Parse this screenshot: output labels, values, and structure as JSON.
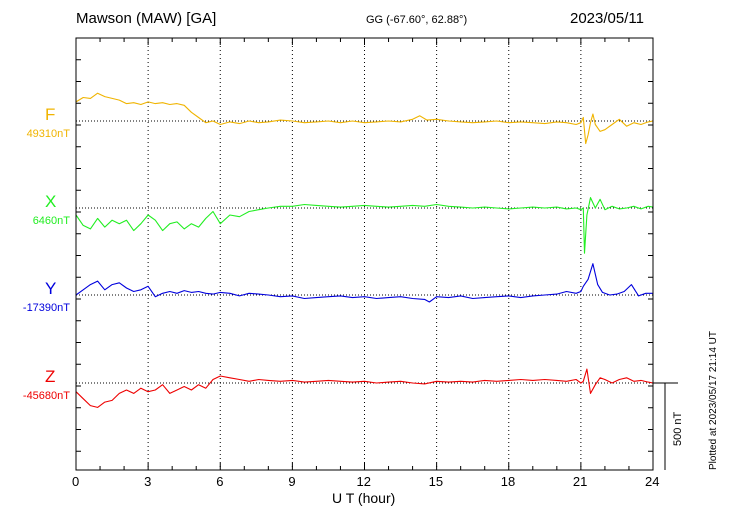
{
  "header": {
    "station": "Mawson (MAW)  [GA]",
    "coords": "GG (-67.60°,  62.88°)",
    "date": "2023/05/11"
  },
  "footer": {
    "plotted": "Plotted at 2023/05/17 21:14 UT"
  },
  "chart_data": {
    "type": "line",
    "xlabel": "U T (hour)",
    "xlim": [
      0,
      24
    ],
    "xticks": [
      "0",
      "3",
      "6",
      "9",
      "12",
      "15",
      "18",
      "21",
      "24"
    ],
    "scale_bar": {
      "value": 500,
      "label": "500 nT"
    },
    "series": [
      {
        "name": "F",
        "baseline_label": "49310nT",
        "baseline": 49310,
        "color": "#f0b400",
        "x": [
          0,
          0.3,
          0.6,
          0.9,
          1.2,
          1.5,
          1.8,
          2.1,
          2.4,
          2.7,
          3.0,
          3.3,
          3.6,
          3.9,
          4.2,
          4.5,
          4.8,
          5.1,
          5.4,
          5.7,
          6.0,
          6.4,
          6.8,
          7.2,
          7.6,
          8.0,
          8.5,
          9.0,
          9.5,
          10,
          10.5,
          11,
          11.5,
          12,
          12.5,
          13,
          13.5,
          14,
          14.3,
          14.6,
          15,
          15.5,
          16,
          16.5,
          17,
          17.5,
          18,
          18.5,
          19,
          19.5,
          20,
          20.4,
          20.8,
          21.0,
          21.1,
          21.2,
          21.3,
          21.4,
          21.5,
          21.6,
          21.8,
          22.0,
          22.3,
          22.6,
          22.9,
          23.2,
          23.5,
          23.8,
          24
        ],
        "values": [
          49420,
          49445,
          49440,
          49470,
          49450,
          49440,
          49430,
          49410,
          49415,
          49405,
          49420,
          49410,
          49415,
          49405,
          49410,
          49400,
          49360,
          49330,
          49300,
          49310,
          49290,
          49305,
          49295,
          49310,
          49300,
          49305,
          49315,
          49310,
          49300,
          49305,
          49310,
          49300,
          49310,
          49300,
          49305,
          49310,
          49305,
          49320,
          49340,
          49315,
          49320,
          49310,
          49305,
          49300,
          49305,
          49310,
          49300,
          49305,
          49300,
          49295,
          49305,
          49300,
          49290,
          49300,
          49330,
          49180,
          49230,
          49300,
          49350,
          49290,
          49250,
          49260,
          49290,
          49320,
          49280,
          49300,
          49290,
          49305,
          49310
        ]
      },
      {
        "name": "X",
        "baseline_label": "6460nT",
        "baseline": 6460,
        "color": "#22ee22",
        "x": [
          0,
          0.3,
          0.6,
          0.9,
          1.2,
          1.5,
          1.8,
          2.1,
          2.4,
          2.7,
          3.0,
          3.3,
          3.6,
          3.9,
          4.2,
          4.5,
          4.8,
          5.1,
          5.4,
          5.7,
          6.0,
          6.4,
          6.8,
          7.2,
          7.6,
          8.0,
          8.5,
          9.0,
          9.5,
          10,
          10.5,
          11,
          11.5,
          12,
          12.5,
          13,
          13.5,
          14,
          14.5,
          15,
          15.5,
          16,
          16.5,
          17,
          17.5,
          18,
          18.5,
          19,
          19.5,
          20,
          20.4,
          20.8,
          21.0,
          21.1,
          21.15,
          21.25,
          21.4,
          21.6,
          21.8,
          22.0,
          22.3,
          22.6,
          22.9,
          23.2,
          23.5,
          23.8,
          24
        ],
        "values": [
          6420,
          6360,
          6340,
          6400,
          6350,
          6390,
          6370,
          6390,
          6330,
          6370,
          6420,
          6390,
          6330,
          6370,
          6380,
          6340,
          6370,
          6350,
          6400,
          6440,
          6370,
          6420,
          6410,
          6440,
          6450,
          6460,
          6470,
          6470,
          6480,
          6475,
          6470,
          6465,
          6470,
          6475,
          6470,
          6465,
          6470,
          6475,
          6470,
          6480,
          6470,
          6465,
          6460,
          6465,
          6460,
          6455,
          6460,
          6465,
          6460,
          6465,
          6455,
          6460,
          6450,
          6460,
          6200,
          6420,
          6520,
          6460,
          6510,
          6450,
          6470,
          6455,
          6460,
          6470,
          6455,
          6470,
          6465
        ]
      },
      {
        "name": "Y",
        "baseline_label": "-17390nT",
        "baseline": -17390,
        "color": "#0000dd",
        "x": [
          0,
          0.3,
          0.6,
          0.9,
          1.2,
          1.5,
          1.8,
          2.1,
          2.4,
          2.7,
          3.0,
          3.3,
          3.6,
          3.9,
          4.2,
          4.5,
          4.8,
          5.1,
          5.4,
          5.7,
          6.0,
          6.4,
          6.8,
          7.2,
          7.6,
          8.0,
          8.5,
          9.0,
          9.5,
          10,
          10.5,
          11,
          11.5,
          12,
          12.5,
          13,
          13.5,
          14,
          14.5,
          14.7,
          15,
          15.5,
          16,
          16.5,
          17,
          17.5,
          18,
          18.5,
          19,
          19.5,
          20,
          20.4,
          20.8,
          21.0,
          21.1,
          21.3,
          21.5,
          21.7,
          21.9,
          22.2,
          22.5,
          22.8,
          23.1,
          23.4,
          23.7,
          24
        ],
        "values": [
          -17390,
          -17360,
          -17330,
          -17310,
          -17360,
          -17330,
          -17320,
          -17350,
          -17370,
          -17360,
          -17340,
          -17400,
          -17380,
          -17370,
          -17380,
          -17365,
          -17375,
          -17370,
          -17380,
          -17385,
          -17375,
          -17380,
          -17395,
          -17380,
          -17385,
          -17390,
          -17400,
          -17395,
          -17410,
          -17405,
          -17400,
          -17395,
          -17405,
          -17400,
          -17410,
          -17405,
          -17400,
          -17410,
          -17415,
          -17430,
          -17400,
          -17405,
          -17395,
          -17410,
          -17405,
          -17400,
          -17395,
          -17405,
          -17395,
          -17390,
          -17385,
          -17370,
          -17380,
          -17370,
          -17340,
          -17300,
          -17210,
          -17330,
          -17375,
          -17390,
          -17385,
          -17370,
          -17330,
          -17395,
          -17380,
          -17380
        ]
      },
      {
        "name": "Z",
        "baseline_label": "-45680nT",
        "baseline": -45680,
        "color": "#ee0000",
        "x": [
          0,
          0.3,
          0.6,
          0.9,
          1.2,
          1.5,
          1.8,
          2.1,
          2.4,
          2.7,
          3.0,
          3.3,
          3.6,
          3.9,
          4.2,
          4.5,
          4.8,
          5.1,
          5.4,
          5.7,
          6.0,
          6.4,
          6.8,
          7.2,
          7.6,
          8.0,
          8.5,
          9.0,
          9.5,
          10,
          10.5,
          11,
          11.5,
          12,
          12.5,
          13,
          13.5,
          14,
          14.5,
          15,
          15.5,
          16,
          16.5,
          17,
          17.5,
          18,
          18.5,
          19,
          19.5,
          20,
          20.4,
          20.8,
          21.0,
          21.1,
          21.25,
          21.4,
          21.6,
          21.8,
          22.0,
          22.3,
          22.6,
          22.9,
          23.2,
          23.5,
          23.8,
          24
        ],
        "values": [
          -45730,
          -45770,
          -45810,
          -45820,
          -45790,
          -45780,
          -45740,
          -45720,
          -45740,
          -45710,
          -45730,
          -45720,
          -45690,
          -45740,
          -45720,
          -45700,
          -45720,
          -45690,
          -45710,
          -45660,
          -45640,
          -45650,
          -45660,
          -45670,
          -45660,
          -45665,
          -45670,
          -45665,
          -45675,
          -45670,
          -45665,
          -45670,
          -45675,
          -45670,
          -45680,
          -45675,
          -45670,
          -45680,
          -45685,
          -45670,
          -45675,
          -45670,
          -45675,
          -45665,
          -45670,
          -45665,
          -45660,
          -45665,
          -45660,
          -45665,
          -45670,
          -45660,
          -45680,
          -45670,
          -45600,
          -45740,
          -45690,
          -45650,
          -45660,
          -45680,
          -45660,
          -45650,
          -45670,
          -45665,
          -45675,
          -45680
        ]
      }
    ]
  }
}
